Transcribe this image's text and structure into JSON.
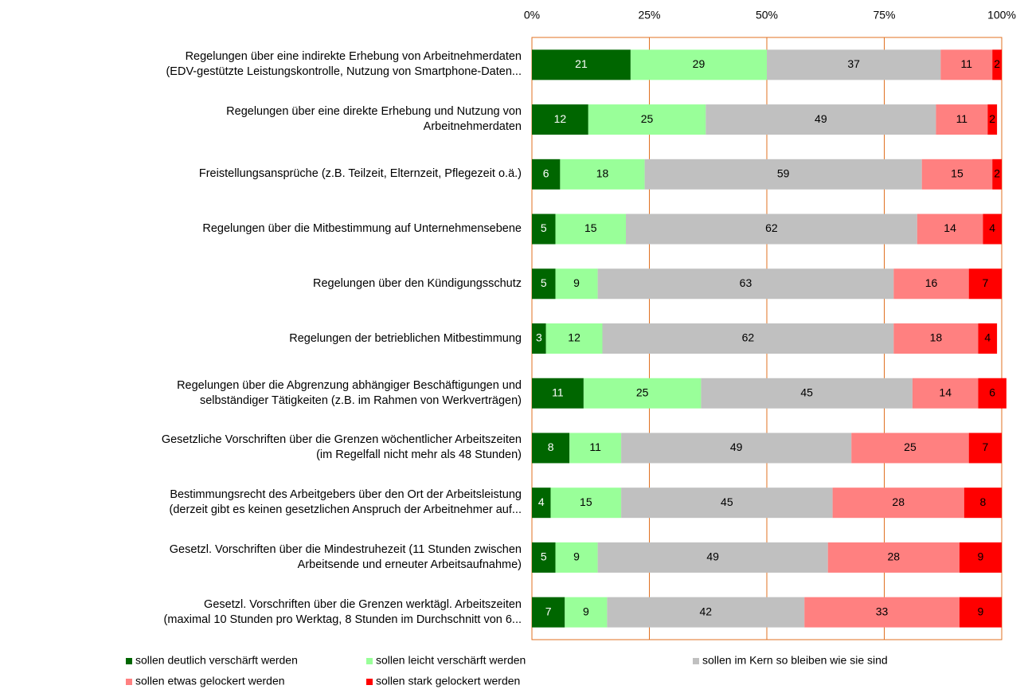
{
  "chart_data": {
    "type": "stacked_bar_horizontal",
    "categories": [
      "Regelungen über eine indirekte Erhebung von Arbeitnehmerdaten\n(EDV-gestützte Leistungskontrolle, Nutzung von Smartphone-Daten...",
      "Regelungen über eine direkte Erhebung und Nutzung von\nArbeitnehmerdaten",
      "Freistellungsansprüche (z.B. Teilzeit, Elternzeit, Pflegezeit o.ä.)",
      "Regelungen über die Mitbestimmung auf Unternehmensebene",
      "Regelungen über den Kündigungsschutz",
      "Regelungen der betrieblichen Mitbestimmung",
      "Regelungen über die Abgrenzung abhängiger Beschäftigungen und\nselbständiger Tätigkeiten (z.B. im Rahmen von Werkverträgen)",
      "Gesetzliche Vorschriften über die Grenzen wöchentlicher Arbeitszeiten\n(im Regelfall nicht mehr als 48 Stunden)",
      "Bestimmungsrecht des Arbeitgebers über den Ort der Arbeitsleistung\n(derzeit gibt es keinen gesetzlichen Anspruch der Arbeitnehmer auf...",
      "Gesetzl. Vorschriften über die Mindestruhezeit (11 Stunden zwischen\nArbeitsende und erneuter Arbeitsaufnahme)",
      "Gesetzl. Vorschriften über die Grenzen werktägl. Arbeitszeiten\n(maximal 10 Stunden pro Werktag, 8 Stunden im Durchschnitt von 6..."
    ],
    "series": [
      {
        "name": "sollen deutlich verschärft werden",
        "color": "#006600",
        "label_color": "#ffffff",
        "values": [
          21,
          12,
          6,
          5,
          5,
          3,
          11,
          8,
          4,
          5,
          7
        ]
      },
      {
        "name": "sollen leicht verschärft werden",
        "color": "#99ff99",
        "label_color": "#000000",
        "values": [
          29,
          25,
          18,
          15,
          9,
          12,
          25,
          11,
          15,
          9,
          9
        ]
      },
      {
        "name": "sollen im Kern so bleiben wie sie sind",
        "color": "#c0c0c0",
        "label_color": "#000000",
        "values": [
          37,
          49,
          59,
          62,
          63,
          62,
          45,
          49,
          45,
          49,
          42
        ]
      },
      {
        "name": "sollen etwas gelockert werden",
        "color": "#ff8080",
        "label_color": "#000000",
        "values": [
          11,
          11,
          15,
          14,
          16,
          18,
          14,
          25,
          28,
          28,
          33
        ]
      },
      {
        "name": "sollen stark gelockert werden",
        "color": "#ff0000",
        "label_color": "#000000",
        "values": [
          2,
          2,
          2,
          4,
          7,
          4,
          6,
          7,
          8,
          9,
          9
        ]
      }
    ],
    "xlim": [
      0,
      100
    ],
    "xticks": [
      {
        "value": 0,
        "label": "0%"
      },
      {
        "value": 25,
        "label": "25%"
      },
      {
        "value": 50,
        "label": "50%"
      },
      {
        "value": 75,
        "label": "75%"
      },
      {
        "value": 100,
        "label": "100%"
      }
    ],
    "grid": true,
    "grid_color": "#e07020",
    "legend": "bottom"
  }
}
